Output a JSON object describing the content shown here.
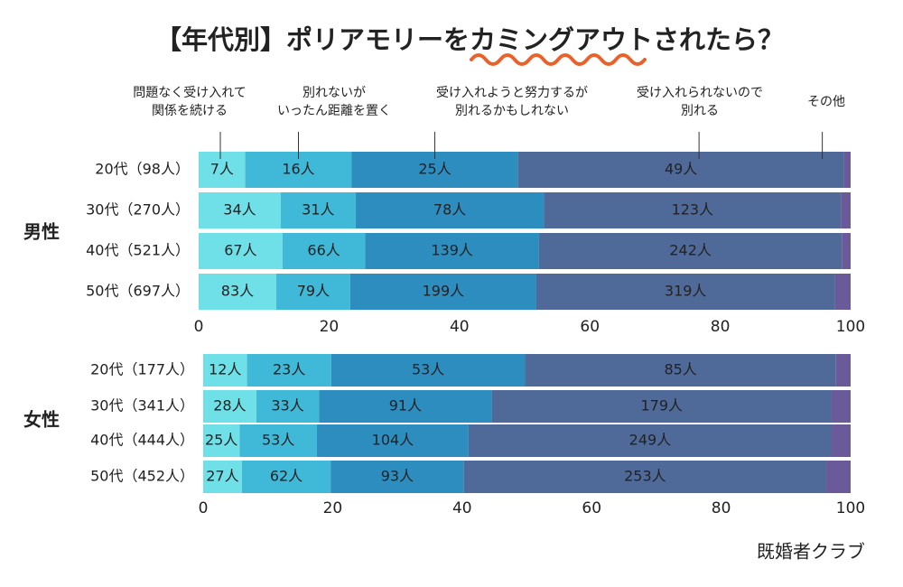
{
  "title": "【年代別】ポリアモリーをカミングアウトされたら？",
  "source": "既婚者クラブ",
  "chart_data": [
    {
      "type": "bar_percent",
      "title": "男性",
      "categories": [
        "20代（98人）",
        "30代（270人）",
        "40代（521人）",
        "50代（697人）"
      ],
      "xlim": [
        0,
        100
      ],
      "xticks": [
        0,
        20,
        40,
        60,
        80,
        100
      ],
      "series": [
        {
          "name": "問題なく受け入れて\n関係を続ける",
          "color": "#6fe0e8",
          "values": [
            7,
            34,
            67,
            83
          ],
          "value_labels": [
            "7人",
            "34人",
            "67人",
            "83人"
          ]
        },
        {
          "name": "別れないが\nいったん距離を置く",
          "color": "#40b8d8",
          "values": [
            16,
            31,
            66,
            79
          ],
          "value_labels": [
            "16人",
            "31人",
            "66人",
            "79人"
          ]
        },
        {
          "name": "受け入れようと努力するが\n別れるかもしれない",
          "color": "#2e8dbf",
          "values": [
            25,
            78,
            139,
            199
          ],
          "value_labels": [
            "25人",
            "78人",
            "139人",
            "199人"
          ]
        },
        {
          "name": "受け入れられないので\n別れる",
          "color": "#4f6a99",
          "values": [
            49,
            123,
            242,
            319
          ],
          "value_labels": [
            "49人",
            "123人",
            "242人",
            "319人"
          ]
        },
        {
          "name": "その他",
          "color": "#6a5a9a",
          "values": [
            1,
            4,
            7,
            17
          ],
          "value_labels": [
            null,
            null,
            null,
            null
          ]
        }
      ]
    },
    {
      "type": "bar_percent",
      "title": "女性",
      "categories": [
        "20代（177人）",
        "30代（341人）",
        "40代（444人）",
        "50代（452人）"
      ],
      "xlim": [
        0,
        100
      ],
      "xticks": [
        0,
        20,
        40,
        60,
        80,
        100
      ],
      "series": [
        {
          "color": "#6fe0e8",
          "values": [
            12,
            28,
            25,
            27
          ],
          "value_labels": [
            "12人",
            "28人",
            "25人",
            "27人"
          ]
        },
        {
          "color": "#40b8d8",
          "values": [
            23,
            33,
            53,
            62
          ],
          "value_labels": [
            "23人",
            "33人",
            "53人",
            "62人"
          ]
        },
        {
          "color": "#2e8dbf",
          "values": [
            53,
            91,
            104,
            93
          ],
          "value_labels": [
            "53人",
            "91人",
            "104人",
            "93人"
          ]
        },
        {
          "color": "#4f6a99",
          "values": [
            85,
            179,
            249,
            253
          ],
          "value_labels": [
            "85人",
            "179人",
            "249人",
            "253人"
          ]
        },
        {
          "color": "#6a5a9a",
          "values": [
            4,
            10,
            13,
            17
          ],
          "value_labels": [
            null,
            null,
            null,
            null
          ]
        }
      ]
    }
  ]
}
